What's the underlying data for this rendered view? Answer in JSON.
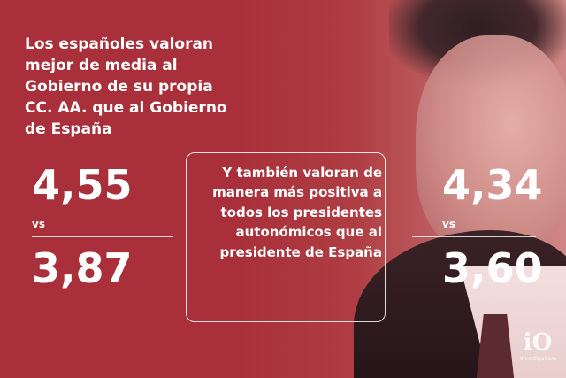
{
  "headline": "Los españoles valoran mejor de media al Gobierno de su propia CC. AA. que al Gobierno de España",
  "left_comparison": {
    "value_top": "4,55",
    "vs_label": "vs",
    "value_bottom": "3,87"
  },
  "box_text": "Y también valoran de manera más positiva a todos los presidentes autonómicos que al presidente de España",
  "right_comparison": {
    "value_top": "4,34",
    "vs_label": "vs",
    "value_bottom": "3,60"
  },
  "logo": {
    "mark": "iO",
    "caption": "InvestigaCom"
  },
  "colors": {
    "background": "#a9303a",
    "text": "#ffffff"
  }
}
